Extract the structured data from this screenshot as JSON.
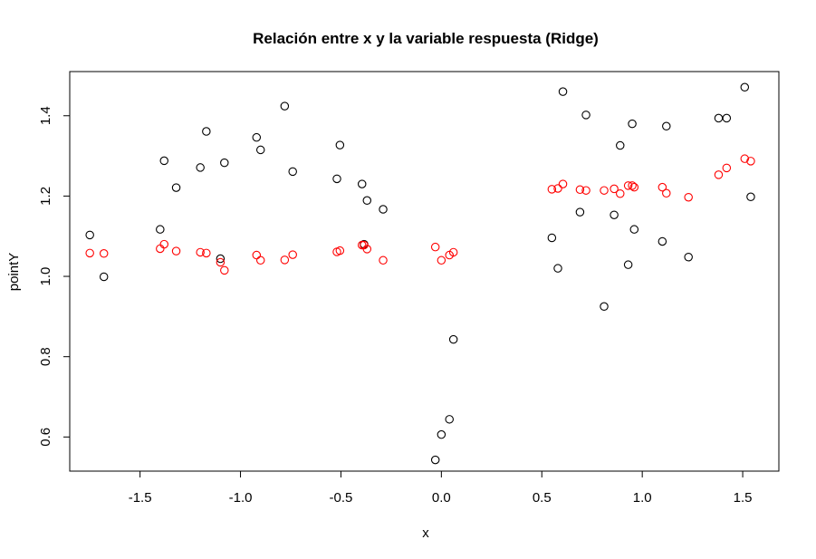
{
  "chart_data": {
    "type": "scatter",
    "title": "Relación entre x y la variable respuesta (Ridge)",
    "xlabel": "x",
    "ylabel": "pointY",
    "xlim": [
      -1.85,
      1.68
    ],
    "ylim": [
      0.515,
      1.51
    ],
    "x_ticks": [
      -1.5,
      -1.0,
      -0.5,
      0.0,
      0.5,
      1.0,
      1.5
    ],
    "x_tick_labels": [
      "-1.5",
      "-1.0",
      "-0.5",
      "0.0",
      "0.5",
      "1.0",
      "1.5"
    ],
    "y_ticks": [
      0.6,
      0.8,
      1.0,
      1.2,
      1.4
    ],
    "y_tick_labels": [
      "0.6",
      "0.8",
      "1.0",
      "1.2",
      "1.4"
    ],
    "grid": false,
    "series": [
      {
        "color": "#000000",
        "marker": "open-circle",
        "points": [
          [
            -1.75,
            1.103
          ],
          [
            -1.68,
            0.999
          ],
          [
            -1.4,
            1.117
          ],
          [
            -1.38,
            1.288
          ],
          [
            -1.32,
            1.221
          ],
          [
            -1.2,
            1.271
          ],
          [
            -1.17,
            1.361
          ],
          [
            -1.1,
            1.044
          ],
          [
            -1.08,
            1.283
          ],
          [
            -0.92,
            1.346
          ],
          [
            -0.9,
            1.315
          ],
          [
            -0.78,
            1.424
          ],
          [
            -0.74,
            1.261
          ],
          [
            -0.52,
            1.243
          ],
          [
            -0.505,
            1.327
          ],
          [
            -0.395,
            1.23
          ],
          [
            -0.385,
            1.08
          ],
          [
            -0.37,
            1.189
          ],
          [
            -0.29,
            1.167
          ],
          [
            -0.03,
            0.543
          ],
          [
            0.0,
            0.606
          ],
          [
            0.04,
            0.644
          ],
          [
            0.06,
            0.843
          ],
          [
            0.55,
            1.096
          ],
          [
            0.58,
            1.02
          ],
          [
            0.605,
            1.46
          ],
          [
            0.69,
            1.16
          ],
          [
            0.72,
            1.402
          ],
          [
            0.81,
            0.925
          ],
          [
            0.86,
            1.153
          ],
          [
            0.89,
            1.326
          ],
          [
            0.93,
            1.029
          ],
          [
            0.95,
            1.38
          ],
          [
            0.96,
            1.117
          ],
          [
            1.1,
            1.087
          ],
          [
            1.12,
            1.374
          ],
          [
            1.23,
            1.048
          ],
          [
            1.38,
            1.394
          ],
          [
            1.42,
            1.394
          ],
          [
            1.51,
            1.471
          ],
          [
            1.54,
            1.198
          ]
        ]
      },
      {
        "color": "#ff0000",
        "marker": "open-circle",
        "points": [
          [
            -1.75,
            1.058
          ],
          [
            -1.68,
            1.057
          ],
          [
            -1.4,
            1.069
          ],
          [
            -1.38,
            1.08
          ],
          [
            -1.32,
            1.063
          ],
          [
            -1.2,
            1.06
          ],
          [
            -1.17,
            1.058
          ],
          [
            -1.1,
            1.035
          ],
          [
            -1.08,
            1.015
          ],
          [
            -0.92,
            1.053
          ],
          [
            -0.9,
            1.04
          ],
          [
            -0.78,
            1.041
          ],
          [
            -0.74,
            1.054
          ],
          [
            -0.52,
            1.061
          ],
          [
            -0.505,
            1.064
          ],
          [
            -0.395,
            1.078
          ],
          [
            -0.385,
            1.078
          ],
          [
            -0.37,
            1.068
          ],
          [
            -0.29,
            1.04
          ],
          [
            -0.03,
            1.073
          ],
          [
            0.0,
            1.04
          ],
          [
            0.04,
            1.053
          ],
          [
            0.06,
            1.06
          ],
          [
            0.55,
            1.217
          ],
          [
            0.58,
            1.219
          ],
          [
            0.605,
            1.23
          ],
          [
            0.69,
            1.216
          ],
          [
            0.72,
            1.214
          ],
          [
            0.81,
            1.214
          ],
          [
            0.86,
            1.218
          ],
          [
            0.89,
            1.206
          ],
          [
            0.93,
            1.226
          ],
          [
            0.95,
            1.226
          ],
          [
            0.96,
            1.222
          ],
          [
            1.1,
            1.222
          ],
          [
            1.12,
            1.207
          ],
          [
            1.23,
            1.197
          ],
          [
            1.38,
            1.253
          ],
          [
            1.42,
            1.27
          ],
          [
            1.51,
            1.293
          ],
          [
            1.54,
            1.287
          ]
        ]
      }
    ]
  }
}
